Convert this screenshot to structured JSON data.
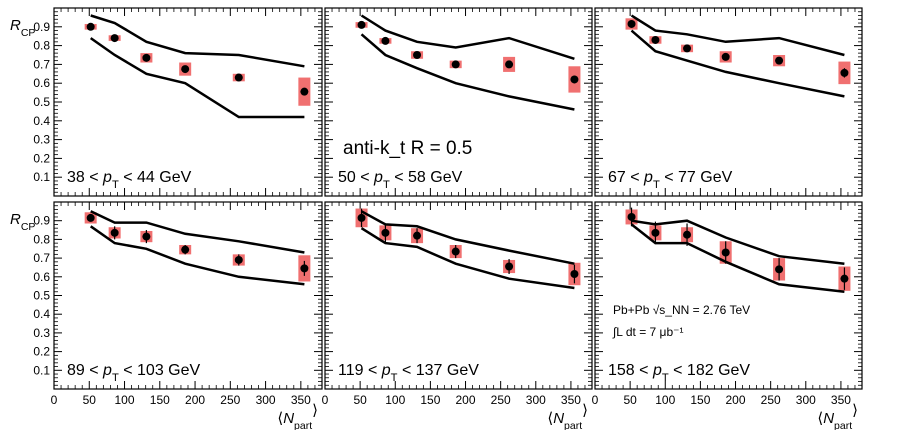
{
  "chart_data": {
    "type": "scatter",
    "layout": "2x3 grid of panels sharing axes",
    "ylabel": "R_CP",
    "xlabel": "⟨N_part⟩",
    "xlim": [
      0,
      380
    ],
    "ylim": [
      0,
      1.0
    ],
    "xticks": [
      0,
      50,
      100,
      150,
      200,
      250,
      300,
      350
    ],
    "yticks": [
      0.1,
      0.2,
      0.3,
      0.4,
      0.5,
      0.6,
      0.7,
      0.8,
      0.9
    ],
    "colors": {
      "syst_box": "#f07070",
      "marker": "#000000",
      "line": "#000000"
    },
    "annotations": {
      "jet_algo": "anti-k_t R = 0.5",
      "collision": "Pb+Pb √s_NN = 2.76 TeV",
      "luminosity": "∫L dt = 7 μb⁻¹"
    },
    "panels": [
      {
        "label": "38 < p_T < 44 GeV",
        "x": [
          52,
          86,
          131,
          186,
          262,
          355
        ],
        "y": [
          0.9,
          0.84,
          0.735,
          0.675,
          0.63,
          0.555
        ],
        "stat_err": [
          0.008,
          0.008,
          0.01,
          0.012,
          0.012,
          0.02
        ],
        "syst_err": [
          0.015,
          0.015,
          0.025,
          0.035,
          0.02,
          0.075
        ],
        "band_upper": {
          "x": [
            52,
            86,
            131,
            186,
            262,
            355
          ],
          "y": [
            0.96,
            0.92,
            0.82,
            0.76,
            0.75,
            0.69
          ]
        },
        "band_lower": {
          "x": [
            52,
            86,
            131,
            186,
            262,
            355
          ],
          "y": [
            0.84,
            0.75,
            0.65,
            0.6,
            0.42,
            0.42
          ]
        }
      },
      {
        "label": "50 < p_T < 58 GeV",
        "x": [
          52,
          86,
          131,
          186,
          262,
          355
        ],
        "y": [
          0.91,
          0.825,
          0.75,
          0.7,
          0.7,
          0.62
        ],
        "stat_err": [
          0.008,
          0.008,
          0.01,
          0.012,
          0.012,
          0.02
        ],
        "syst_err": [
          0.015,
          0.015,
          0.02,
          0.02,
          0.04,
          0.07
        ],
        "band_upper": {
          "x": [
            52,
            86,
            131,
            186,
            262,
            355
          ],
          "y": [
            0.96,
            0.88,
            0.82,
            0.79,
            0.84,
            0.73
          ]
        },
        "band_lower": {
          "x": [
            52,
            86,
            131,
            186,
            262,
            355
          ],
          "y": [
            0.86,
            0.75,
            0.68,
            0.6,
            0.53,
            0.46
          ]
        }
      },
      {
        "label": "67 < p_T < 77 GeV",
        "x": [
          52,
          86,
          131,
          186,
          262,
          355
        ],
        "y": [
          0.915,
          0.83,
          0.785,
          0.74,
          0.72,
          0.655
        ],
        "stat_err": [
          0.008,
          0.01,
          0.012,
          0.015,
          0.015,
          0.025
        ],
        "syst_err": [
          0.03,
          0.02,
          0.02,
          0.03,
          0.03,
          0.06
        ],
        "band_upper": {
          "x": [
            52,
            86,
            131,
            186,
            262,
            355
          ],
          "y": [
            0.96,
            0.88,
            0.86,
            0.82,
            0.84,
            0.75
          ]
        },
        "band_lower": {
          "x": [
            52,
            86,
            131,
            186,
            262,
            355
          ],
          "y": [
            0.88,
            0.77,
            0.72,
            0.66,
            0.6,
            0.53
          ]
        }
      },
      {
        "label": "89 < p_T < 103 GeV",
        "x": [
          52,
          86,
          131,
          186,
          262,
          355
        ],
        "y": [
          0.915,
          0.835,
          0.815,
          0.745,
          0.69,
          0.645
        ],
        "stat_err": [
          0.02,
          0.035,
          0.035,
          0.025,
          0.03,
          0.04
        ],
        "syst_err": [
          0.03,
          0.03,
          0.03,
          0.025,
          0.03,
          0.07
        ],
        "band_upper": {
          "x": [
            52,
            86,
            131,
            186,
            262,
            355
          ],
          "y": [
            0.95,
            0.89,
            0.89,
            0.83,
            0.79,
            0.73
          ]
        },
        "band_lower": {
          "x": [
            52,
            86,
            131,
            186,
            262,
            355
          ],
          "y": [
            0.87,
            0.78,
            0.75,
            0.67,
            0.6,
            0.56
          ]
        }
      },
      {
        "label": "119 < p_T < 137 GeV",
        "x": [
          52,
          86,
          131,
          186,
          262,
          355
        ],
        "y": [
          0.915,
          0.835,
          0.82,
          0.735,
          0.655,
          0.615
        ],
        "stat_err": [
          0.05,
          0.05,
          0.04,
          0.035,
          0.04,
          0.05
        ],
        "syst_err": [
          0.05,
          0.04,
          0.04,
          0.035,
          0.035,
          0.06
        ],
        "band_upper": {
          "x": [
            52,
            86,
            131,
            186,
            262,
            355
          ],
          "y": [
            0.95,
            0.88,
            0.87,
            0.8,
            0.74,
            0.67
          ]
        },
        "band_lower": {
          "x": [
            52,
            86,
            131,
            186,
            262,
            355
          ],
          "y": [
            0.86,
            0.78,
            0.76,
            0.67,
            0.59,
            0.54
          ]
        }
      },
      {
        "label": "158 < p_T < 182 GeV",
        "x": [
          52,
          86,
          131,
          186,
          262,
          355
        ],
        "y": [
          0.92,
          0.835,
          0.825,
          0.73,
          0.64,
          0.59
        ],
        "stat_err": [
          0.05,
          0.06,
          0.06,
          0.06,
          0.06,
          0.06
        ],
        "syst_err": [
          0.04,
          0.04,
          0.04,
          0.06,
          0.06,
          0.065
        ],
        "band_upper": {
          "x": [
            52,
            86,
            131,
            186,
            262,
            355
          ],
          "y": [
            0.9,
            0.88,
            0.9,
            0.81,
            0.71,
            0.67
          ]
        },
        "band_lower": {
          "x": [
            52,
            86,
            131,
            186,
            262,
            355
          ],
          "y": [
            0.88,
            0.78,
            0.78,
            0.68,
            0.56,
            0.52
          ]
        }
      }
    ]
  }
}
